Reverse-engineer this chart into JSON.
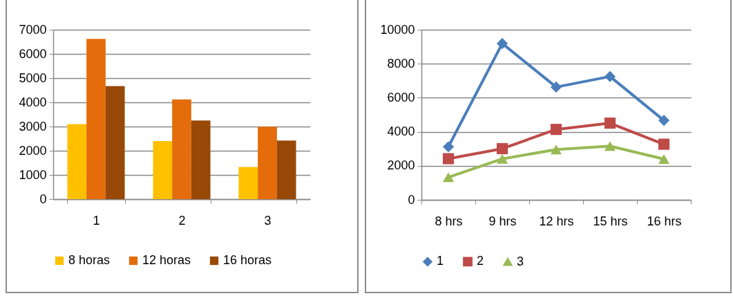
{
  "chart_data": [
    {
      "type": "bar",
      "categories": [
        "1",
        "2",
        "3"
      ],
      "series": [
        {
          "name": "8 horas",
          "color": "#ffc000",
          "values": [
            3100,
            2400,
            1330
          ]
        },
        {
          "name": "12 horas",
          "color": "#e46c0a",
          "values": [
            6620,
            4120,
            2990
          ]
        },
        {
          "name": "16 horas",
          "color": "#984807",
          "values": [
            4670,
            3250,
            2420
          ]
        }
      ],
      "ylim": [
        0,
        7000
      ],
      "yticks": [
        0,
        1000,
        2000,
        3000,
        4000,
        5000,
        6000,
        7000
      ],
      "grid": "y",
      "legend": "bottom"
    },
    {
      "type": "line",
      "categories": [
        "8 hrs",
        "9 hrs",
        "12 hrs",
        "15 hrs",
        "16 hrs"
      ],
      "series": [
        {
          "name": "1",
          "color": "#4a7ebb",
          "marker": "diamond",
          "values": [
            3120,
            9190,
            6630,
            7250,
            4670
          ]
        },
        {
          "name": "2",
          "color": "#be4b48",
          "marker": "square",
          "values": [
            2420,
            3010,
            4140,
            4510,
            3270
          ]
        },
        {
          "name": "3",
          "color": "#98b954",
          "marker": "triangle",
          "values": [
            1330,
            2410,
            2960,
            3160,
            2400
          ]
        }
      ],
      "ylim": [
        0,
        10000
      ],
      "yticks": [
        0,
        2000,
        4000,
        6000,
        8000,
        10000
      ],
      "grid": "y",
      "legend": "bottom"
    }
  ]
}
